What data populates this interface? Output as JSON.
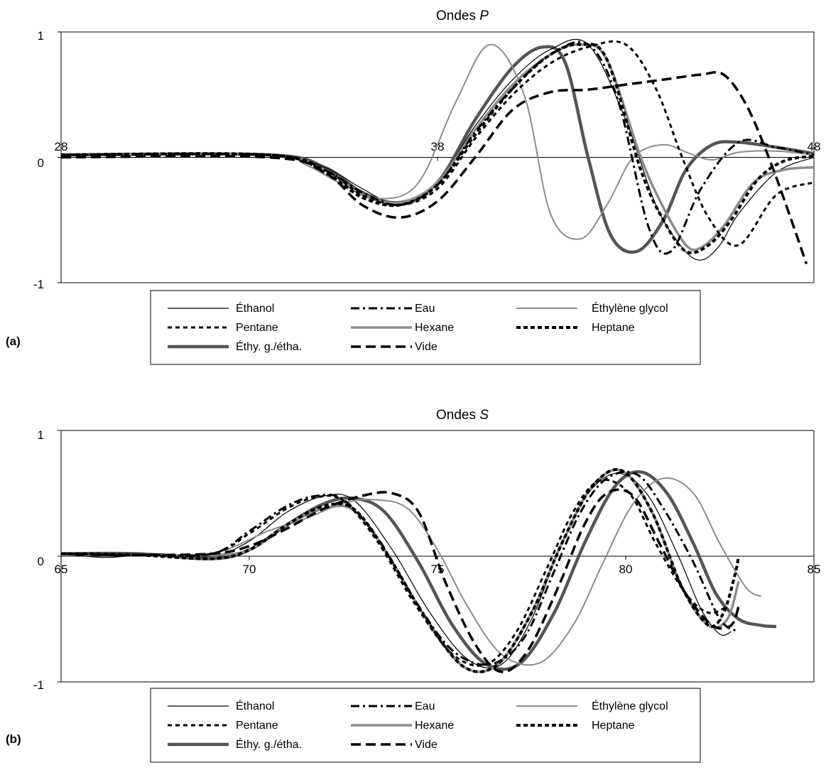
{
  "chart_data": [
    {
      "type": "line",
      "panel_label": "(a)",
      "title": "Ondes ",
      "title_italic": "P",
      "xlim": [
        28,
        48
      ],
      "ylim": [
        -1,
        1
      ],
      "x_ticks": [
        "28",
        "38",
        "48"
      ],
      "y_ticks": [
        "1",
        "0",
        "-1"
      ],
      "grid": false,
      "legend_position": "bottom",
      "series": [
        {
          "name": "Éthanol",
          "color": "#000000",
          "width": 1.2,
          "dash": "",
          "x": [
            28,
            33.5,
            35.0,
            36.0,
            37.0,
            38.0,
            39.0,
            40.0,
            41.0,
            42.0,
            43.0,
            43.8,
            44.5,
            45.0,
            45.5,
            46.0,
            47.0,
            48.0
          ],
          "y": [
            0.02,
            0.02,
            -0.08,
            -0.25,
            -0.38,
            -0.2,
            0.25,
            0.62,
            0.86,
            0.9,
            0.3,
            -0.38,
            -0.72,
            -0.82,
            -0.7,
            -0.45,
            -0.12,
            0.0
          ]
        },
        {
          "name": "Eau",
          "color": "#000000",
          "width": 3,
          "dash": "12,5,3,5",
          "x": [
            28,
            33.5,
            35.0,
            36.0,
            37.0,
            38.0,
            39.0,
            40.0,
            41.0,
            42.0,
            42.8,
            43.6,
            44.2,
            45.0,
            46.0,
            47.0,
            48.0
          ],
          "y": [
            0.02,
            0.02,
            -0.1,
            -0.28,
            -0.38,
            -0.22,
            0.2,
            0.55,
            0.82,
            0.9,
            0.45,
            -0.55,
            -0.75,
            -0.25,
            0.12,
            0.08,
            0.02
          ]
        },
        {
          "name": "Éthylène glycol",
          "color": "#8c8c8c",
          "width": 2,
          "dash": "",
          "x": [
            28,
            33.5,
            34.5,
            35.5,
            36.5,
            37.5,
            38.5,
            39.4,
            40.3,
            41.0,
            41.8,
            42.5,
            43.2,
            44.0,
            44.7,
            45.3,
            46.0,
            47.0,
            48.0
          ],
          "y": [
            0.02,
            0.02,
            -0.06,
            -0.22,
            -0.33,
            -0.2,
            0.45,
            0.9,
            0.5,
            -0.45,
            -0.65,
            -0.38,
            0.0,
            0.1,
            0.03,
            -0.02,
            0.04,
            0.05,
            0.02
          ]
        },
        {
          "name": "Pentane",
          "color": "#000000",
          "width": 3,
          "dash": "6,5",
          "x": [
            28,
            33.5,
            35.0,
            36.0,
            37.0,
            38.0,
            39.0,
            40.0,
            41.0,
            42.0,
            43.0,
            43.8,
            44.5,
            45.2,
            46.0,
            47.0,
            48.0
          ],
          "y": [
            0.02,
            0.02,
            -0.1,
            -0.3,
            -0.38,
            -0.25,
            0.15,
            0.5,
            0.75,
            0.88,
            0.9,
            0.55,
            0.0,
            -0.48,
            -0.7,
            -0.3,
            -0.2
          ]
        },
        {
          "name": "Hexane",
          "color": "#8c8c8c",
          "width": 3.5,
          "dash": "",
          "x": [
            28,
            33.5,
            35.0,
            36.0,
            37.0,
            38.0,
            39.0,
            40.0,
            41.0,
            41.8,
            42.5,
            43.4,
            44.0,
            44.6,
            45.0,
            45.6,
            46.4,
            47.2,
            48.0
          ],
          "y": [
            0.02,
            0.02,
            -0.1,
            -0.3,
            -0.36,
            -0.2,
            0.22,
            0.58,
            0.82,
            0.9,
            0.78,
            0.0,
            -0.4,
            -0.7,
            -0.72,
            -0.55,
            -0.2,
            -0.1,
            -0.08
          ]
        },
        {
          "name": "Heptane",
          "color": "#000000",
          "width": 4,
          "dash": "6,4",
          "x": [
            28,
            33.5,
            35.0,
            36.0,
            37.0,
            38.0,
            39.0,
            40.0,
            41.0,
            41.8,
            42.5,
            43.4,
            44.0,
            44.6,
            45.2,
            45.8,
            46.5,
            47.2,
            48.0
          ],
          "y": [
            0.02,
            0.02,
            -0.12,
            -0.32,
            -0.38,
            -0.22,
            0.18,
            0.55,
            0.82,
            0.9,
            0.78,
            -0.1,
            -0.5,
            -0.75,
            -0.7,
            -0.5,
            -0.18,
            -0.03,
            0.01
          ]
        },
        {
          "name": "Éthy. g./étha.",
          "color": "#555555",
          "width": 4.5,
          "dash": "",
          "x": [
            28,
            33.5,
            35.0,
            36.0,
            37.0,
            38.0,
            39.0,
            40.0,
            40.8,
            41.4,
            42.0,
            42.6,
            43.3,
            44.0,
            44.6,
            45.3,
            46.0,
            47.0,
            48.0
          ],
          "y": [
            0.02,
            0.02,
            -0.08,
            -0.28,
            -0.36,
            -0.2,
            0.3,
            0.72,
            0.88,
            0.75,
            0.0,
            -0.62,
            -0.75,
            -0.5,
            -0.1,
            0.1,
            0.12,
            0.08,
            0.03
          ]
        },
        {
          "name": "Vide",
          "color": "#000000",
          "width": 3.5,
          "dash": "14,7",
          "x": [
            28,
            33.5,
            35.0,
            36.0,
            37.0,
            38.0,
            39.0,
            40.0,
            41.0,
            42.0,
            43.0,
            44.0,
            45.0,
            45.6,
            46.2,
            46.8,
            47.4,
            47.8
          ],
          "y": [
            0.0,
            0.0,
            -0.12,
            -0.38,
            -0.48,
            -0.35,
            0.0,
            0.38,
            0.52,
            0.54,
            0.58,
            0.62,
            0.66,
            0.66,
            0.42,
            0.0,
            -0.5,
            -0.85
          ]
        }
      ]
    },
    {
      "type": "line",
      "panel_label": "(b)",
      "title": "Ondes ",
      "title_italic": "S",
      "xlim": [
        65,
        85
      ],
      "ylim": [
        -1,
        1
      ],
      "x_ticks": [
        "65",
        "70",
        "75",
        "80",
        "85"
      ],
      "y_ticks": [
        "1",
        "0",
        "-1"
      ],
      "grid": false,
      "legend_position": "bottom",
      "series": [
        {
          "name": "Éthanol",
          "color": "#000000",
          "width": 1.2,
          "dash": "",
          "x": [
            65,
            66.2,
            67.5,
            69.0,
            70.0,
            71.0,
            72.0,
            72.8,
            73.8,
            74.8,
            75.8,
            76.7,
            77.5,
            78.3,
            79.0,
            79.8,
            80.6,
            81.4,
            82.0,
            82.5,
            82.8
          ],
          "y": [
            0.02,
            -0.01,
            0.02,
            0.0,
            0.12,
            0.35,
            0.48,
            0.44,
            0.05,
            -0.45,
            -0.82,
            -0.86,
            -0.5,
            0.1,
            0.5,
            0.66,
            0.48,
            0.0,
            -0.42,
            -0.62,
            -0.6
          ]
        },
        {
          "name": "Eau",
          "color": "#000000",
          "width": 3,
          "dash": "12,5,3,5",
          "x": [
            65,
            67.0,
            69.0,
            70.0,
            71.0,
            71.8,
            72.5,
            73.4,
            74.4,
            75.4,
            76.4,
            77.3,
            78.1,
            78.8,
            79.5,
            80.3,
            81.0,
            81.8,
            82.5,
            83.0
          ],
          "y": [
            0.02,
            0.01,
            0.02,
            0.2,
            0.4,
            0.48,
            0.45,
            0.15,
            -0.35,
            -0.75,
            -0.86,
            -0.65,
            -0.12,
            0.35,
            0.62,
            0.65,
            0.38,
            -0.05,
            -0.5,
            -0.6
          ]
        },
        {
          "name": "Éthylène glycol",
          "color": "#8c8c8c",
          "width": 2,
          "dash": "",
          "x": [
            65,
            67.0,
            69.0,
            70.5,
            71.5,
            72.5,
            73.3,
            74.2,
            75.0,
            75.8,
            76.7,
            77.7,
            78.6,
            79.4,
            80.2,
            81.0,
            81.8,
            82.5,
            83.2,
            83.6
          ],
          "y": [
            0.02,
            0.01,
            0.02,
            0.2,
            0.3,
            0.42,
            0.45,
            0.38,
            0.05,
            -0.4,
            -0.78,
            -0.85,
            -0.55,
            -0.05,
            0.42,
            0.62,
            0.5,
            0.1,
            -0.25,
            -0.32
          ]
        },
        {
          "name": "Pentane",
          "color": "#000000",
          "width": 3,
          "dash": "6,5",
          "x": [
            65,
            67.0,
            69.0,
            70.0,
            71.0,
            71.8,
            72.5,
            73.4,
            74.4,
            75.4,
            76.3,
            77.1,
            77.9,
            78.6,
            79.3,
            80.1,
            80.8,
            81.6,
            82.2,
            82.7
          ],
          "y": [
            0.02,
            0.01,
            0.02,
            0.18,
            0.38,
            0.47,
            0.44,
            0.12,
            -0.38,
            -0.78,
            -0.86,
            -0.6,
            -0.1,
            0.35,
            0.6,
            0.5,
            0.1,
            -0.3,
            -0.45,
            -0.4
          ]
        },
        {
          "name": "Hexane",
          "color": "#8c8c8c",
          "width": 3.5,
          "dash": "",
          "x": [
            65,
            67.0,
            69.0,
            70.0,
            71.0,
            72.0,
            72.8,
            73.7,
            74.7,
            75.7,
            76.6,
            77.5,
            78.3,
            79.1,
            79.9,
            80.7,
            81.5,
            82.2,
            82.7,
            83.0
          ],
          "y": [
            0.02,
            0.01,
            0.01,
            0.05,
            0.25,
            0.38,
            0.36,
            0.0,
            -0.5,
            -0.88,
            -0.86,
            -0.45,
            0.1,
            0.55,
            0.68,
            0.35,
            -0.25,
            -0.55,
            -0.5,
            -0.2
          ]
        },
        {
          "name": "Heptane",
          "color": "#000000",
          "width": 4,
          "dash": "6,4",
          "x": [
            65,
            67.0,
            69.0,
            70.0,
            71.0,
            72.0,
            72.8,
            73.7,
            74.7,
            75.7,
            76.6,
            77.5,
            78.3,
            79.1,
            79.9,
            80.7,
            81.5,
            82.2,
            82.6,
            82.9,
            83.0
          ],
          "y": [
            0.02,
            0.01,
            -0.02,
            0.05,
            0.25,
            0.4,
            0.37,
            0.0,
            -0.5,
            -0.88,
            -0.86,
            -0.45,
            0.1,
            0.55,
            0.68,
            0.35,
            -0.25,
            -0.55,
            -0.45,
            -0.15,
            0.0
          ]
        },
        {
          "name": "Éthy. g./étha.",
          "color": "#555555",
          "width": 4.5,
          "dash": "",
          "x": [
            65,
            67.0,
            69.0,
            70.0,
            71.0,
            72.0,
            72.8,
            73.6,
            74.5,
            75.4,
            76.3,
            77.2,
            78.1,
            78.9,
            79.7,
            80.4,
            81.1,
            81.8,
            82.4,
            83.0,
            83.6,
            84.0
          ],
          "y": [
            0.02,
            0.02,
            -0.02,
            0.05,
            0.25,
            0.42,
            0.46,
            0.35,
            -0.05,
            -0.55,
            -0.86,
            -0.85,
            -0.45,
            0.1,
            0.55,
            0.67,
            0.5,
            0.1,
            -0.3,
            -0.5,
            -0.55,
            -0.56
          ]
        },
        {
          "name": "Vide",
          "color": "#000000",
          "width": 3.5,
          "dash": "14,7",
          "x": [
            65,
            67.0,
            69.0,
            70.0,
            71.0,
            72.0,
            73.0,
            73.8,
            74.5,
            75.2,
            76.0,
            76.7,
            77.4,
            78.2,
            78.9,
            79.5,
            80.2,
            80.9,
            81.6,
            82.3,
            82.8,
            83.0
          ],
          "y": [
            0.02,
            0.01,
            0.02,
            0.08,
            0.22,
            0.38,
            0.48,
            0.5,
            0.35,
            -0.2,
            -0.7,
            -0.92,
            -0.75,
            -0.25,
            0.25,
            0.5,
            0.48,
            0.1,
            -0.3,
            -0.55,
            -0.55,
            -0.4
          ]
        }
      ]
    }
  ]
}
